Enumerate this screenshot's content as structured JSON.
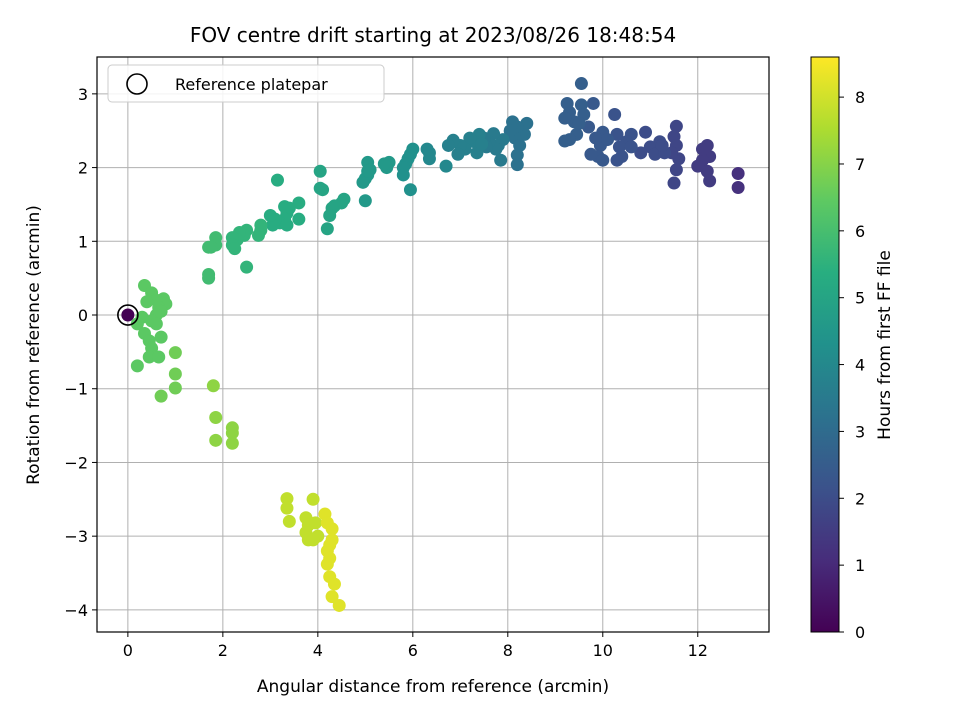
{
  "chart_data": {
    "type": "scatter",
    "title": "FOV centre drift starting at 2023/08/26 18:48:54",
    "xlabel": "Angular distance from reference (arcmin)",
    "ylabel": "Rotation from reference (arcmin)",
    "xlim": [
      -0.65,
      13.5
    ],
    "ylim": [
      -4.3,
      3.5
    ],
    "xticks": [
      0,
      2,
      4,
      6,
      8,
      10,
      12
    ],
    "yticks": [
      -4,
      -3,
      -2,
      -1,
      0,
      1,
      2,
      3
    ],
    "grid": true,
    "legend": {
      "location": "upper-left",
      "label": "Reference platepar"
    },
    "colorbar": {
      "label": "Hours from first FF file",
      "colormap": "viridis",
      "range": [
        0,
        8.6
      ],
      "ticks": [
        0,
        1,
        2,
        3,
        4,
        5,
        6,
        7,
        8
      ]
    },
    "reference_point": {
      "x": 0,
      "y": 0
    },
    "points": [
      {
        "x": 0.0,
        "y": 0.0,
        "t": 0.0
      },
      {
        "x": 12.85,
        "y": 1.92,
        "t": 1.2
      },
      {
        "x": 12.85,
        "y": 1.73,
        "t": 1.2
      },
      {
        "x": 12.2,
        "y": 2.3,
        "t": 1.5
      },
      {
        "x": 12.25,
        "y": 2.15,
        "t": 1.5
      },
      {
        "x": 12.1,
        "y": 2.1,
        "t": 1.5
      },
      {
        "x": 12.0,
        "y": 2.02,
        "t": 1.5
      },
      {
        "x": 12.2,
        "y": 1.95,
        "t": 1.5
      },
      {
        "x": 12.25,
        "y": 1.82,
        "t": 1.5
      },
      {
        "x": 12.1,
        "y": 2.25,
        "t": 1.5
      },
      {
        "x": 11.55,
        "y": 2.56,
        "t": 1.8
      },
      {
        "x": 11.5,
        "y": 2.42,
        "t": 1.8
      },
      {
        "x": 11.55,
        "y": 2.3,
        "t": 1.8
      },
      {
        "x": 11.6,
        "y": 2.12,
        "t": 1.8
      },
      {
        "x": 11.55,
        "y": 1.97,
        "t": 1.8
      },
      {
        "x": 11.5,
        "y": 1.79,
        "t": 1.8
      },
      {
        "x": 11.45,
        "y": 2.2,
        "t": 1.8
      },
      {
        "x": 11.2,
        "y": 2.35,
        "t": 2.0
      },
      {
        "x": 11.0,
        "y": 2.28,
        "t": 2.0
      },
      {
        "x": 11.1,
        "y": 2.18,
        "t": 2.0
      },
      {
        "x": 11.3,
        "y": 2.2,
        "t": 2.0
      },
      {
        "x": 10.9,
        "y": 2.48,
        "t": 2.0
      },
      {
        "x": 10.8,
        "y": 2.2,
        "t": 2.0
      },
      {
        "x": 11.25,
        "y": 2.3,
        "t": 2.0
      },
      {
        "x": 10.6,
        "y": 2.45,
        "t": 2.2
      },
      {
        "x": 10.5,
        "y": 2.35,
        "t": 2.2
      },
      {
        "x": 10.3,
        "y": 2.45,
        "t": 2.2
      },
      {
        "x": 10.35,
        "y": 2.28,
        "t": 2.2
      },
      {
        "x": 10.4,
        "y": 2.15,
        "t": 2.2
      },
      {
        "x": 10.25,
        "y": 2.72,
        "t": 2.2
      },
      {
        "x": 10.3,
        "y": 2.1,
        "t": 2.2
      },
      {
        "x": 10.6,
        "y": 2.28,
        "t": 2.2
      },
      {
        "x": 10.0,
        "y": 2.48,
        "t": 2.4
      },
      {
        "x": 9.95,
        "y": 2.3,
        "t": 2.4
      },
      {
        "x": 9.9,
        "y": 2.15,
        "t": 2.4
      },
      {
        "x": 10.0,
        "y": 2.1,
        "t": 2.4
      },
      {
        "x": 9.8,
        "y": 2.87,
        "t": 2.4
      },
      {
        "x": 9.7,
        "y": 2.55,
        "t": 2.4
      },
      {
        "x": 9.75,
        "y": 2.18,
        "t": 2.4
      },
      {
        "x": 9.85,
        "y": 2.4,
        "t": 2.4
      },
      {
        "x": 10.1,
        "y": 2.38,
        "t": 2.4
      },
      {
        "x": 9.55,
        "y": 3.14,
        "t": 2.6
      },
      {
        "x": 9.55,
        "y": 2.85,
        "t": 2.6
      },
      {
        "x": 9.6,
        "y": 2.72,
        "t": 2.6
      },
      {
        "x": 9.4,
        "y": 2.62,
        "t": 2.6
      },
      {
        "x": 9.3,
        "y": 2.75,
        "t": 2.6
      },
      {
        "x": 9.25,
        "y": 2.87,
        "t": 2.6
      },
      {
        "x": 9.2,
        "y": 2.67,
        "t": 2.6
      },
      {
        "x": 9.45,
        "y": 2.45,
        "t": 2.6
      },
      {
        "x": 9.3,
        "y": 2.38,
        "t": 2.6
      },
      {
        "x": 9.2,
        "y": 2.36,
        "t": 2.6
      },
      {
        "x": 9.5,
        "y": 2.6,
        "t": 2.6
      },
      {
        "x": 8.4,
        "y": 2.6,
        "t": 3.2
      },
      {
        "x": 8.35,
        "y": 2.45,
        "t": 3.2
      },
      {
        "x": 8.2,
        "y": 2.55,
        "t": 3.2
      },
      {
        "x": 8.1,
        "y": 2.62,
        "t": 3.2
      },
      {
        "x": 8.15,
        "y": 2.4,
        "t": 3.2
      },
      {
        "x": 8.25,
        "y": 2.3,
        "t": 3.2
      },
      {
        "x": 8.2,
        "y": 2.17,
        "t": 3.2
      },
      {
        "x": 8.2,
        "y": 2.04,
        "t": 3.2
      },
      {
        "x": 8.05,
        "y": 2.5,
        "t": 3.2
      },
      {
        "x": 7.9,
        "y": 2.38,
        "t": 3.5
      },
      {
        "x": 7.8,
        "y": 2.3,
        "t": 3.5
      },
      {
        "x": 7.7,
        "y": 2.46,
        "t": 3.5
      },
      {
        "x": 7.75,
        "y": 2.25,
        "t": 3.5
      },
      {
        "x": 7.6,
        "y": 2.35,
        "t": 3.5
      },
      {
        "x": 7.85,
        "y": 2.1,
        "t": 3.5
      },
      {
        "x": 7.5,
        "y": 2.4,
        "t": 3.5
      },
      {
        "x": 7.55,
        "y": 2.28,
        "t": 3.5
      },
      {
        "x": 7.4,
        "y": 2.45,
        "t": 3.7
      },
      {
        "x": 7.3,
        "y": 2.35,
        "t": 3.7
      },
      {
        "x": 7.35,
        "y": 2.2,
        "t": 3.7
      },
      {
        "x": 7.2,
        "y": 2.4,
        "t": 3.7
      },
      {
        "x": 7.1,
        "y": 2.25,
        "t": 3.7
      },
      {
        "x": 7.0,
        "y": 2.3,
        "t": 3.7
      },
      {
        "x": 6.95,
        "y": 2.18,
        "t": 3.7
      },
      {
        "x": 6.85,
        "y": 2.37,
        "t": 3.7
      },
      {
        "x": 6.75,
        "y": 2.3,
        "t": 3.7
      },
      {
        "x": 7.45,
        "y": 2.32,
        "t": 3.7
      },
      {
        "x": 6.7,
        "y": 2.02,
        "t": 4.0
      },
      {
        "x": 6.35,
        "y": 2.2,
        "t": 4.0
      },
      {
        "x": 6.3,
        "y": 2.25,
        "t": 4.0
      },
      {
        "x": 6.35,
        "y": 2.12,
        "t": 4.0
      },
      {
        "x": 6.0,
        "y": 2.25,
        "t": 4.3
      },
      {
        "x": 5.95,
        "y": 2.18,
        "t": 4.3
      },
      {
        "x": 5.9,
        "y": 2.12,
        "t": 4.3
      },
      {
        "x": 5.85,
        "y": 2.05,
        "t": 4.3
      },
      {
        "x": 5.8,
        "y": 2.0,
        "t": 4.3
      },
      {
        "x": 5.8,
        "y": 1.9,
        "t": 4.3
      },
      {
        "x": 5.95,
        "y": 1.7,
        "t": 4.3
      },
      {
        "x": 5.5,
        "y": 2.07,
        "t": 4.6
      },
      {
        "x": 5.45,
        "y": 2.0,
        "t": 4.6
      },
      {
        "x": 5.4,
        "y": 2.05,
        "t": 4.6
      },
      {
        "x": 5.05,
        "y": 2.07,
        "t": 4.6
      },
      {
        "x": 5.1,
        "y": 1.97,
        "t": 4.6
      },
      {
        "x": 5.05,
        "y": 1.9,
        "t": 4.6
      },
      {
        "x": 5.0,
        "y": 1.85,
        "t": 4.6
      },
      {
        "x": 4.95,
        "y": 1.8,
        "t": 4.6
      },
      {
        "x": 5.0,
        "y": 1.55,
        "t": 4.6
      },
      {
        "x": 5.05,
        "y": 1.95,
        "t": 4.6
      },
      {
        "x": 4.55,
        "y": 1.57,
        "t": 5.0
      },
      {
        "x": 4.5,
        "y": 1.52,
        "t": 5.0
      },
      {
        "x": 4.35,
        "y": 1.48,
        "t": 5.0
      },
      {
        "x": 4.3,
        "y": 1.45,
        "t": 5.0
      },
      {
        "x": 4.05,
        "y": 1.95,
        "t": 5.0
      },
      {
        "x": 4.05,
        "y": 1.72,
        "t": 5.0
      },
      {
        "x": 4.1,
        "y": 1.7,
        "t": 5.0
      },
      {
        "x": 4.25,
        "y": 1.35,
        "t": 5.0
      },
      {
        "x": 4.2,
        "y": 1.17,
        "t": 5.0
      },
      {
        "x": 3.6,
        "y": 1.52,
        "t": 5.3
      },
      {
        "x": 3.6,
        "y": 1.3,
        "t": 5.3
      },
      {
        "x": 3.4,
        "y": 1.45,
        "t": 5.3
      },
      {
        "x": 3.35,
        "y": 1.38,
        "t": 5.3
      },
      {
        "x": 3.3,
        "y": 1.47,
        "t": 5.3
      },
      {
        "x": 3.3,
        "y": 1.3,
        "t": 5.3
      },
      {
        "x": 3.2,
        "y": 1.25,
        "t": 5.3
      },
      {
        "x": 3.1,
        "y": 1.3,
        "t": 5.3
      },
      {
        "x": 3.05,
        "y": 1.22,
        "t": 5.3
      },
      {
        "x": 3.0,
        "y": 1.35,
        "t": 5.3
      },
      {
        "x": 3.15,
        "y": 1.83,
        "t": 5.3
      },
      {
        "x": 3.35,
        "y": 1.22,
        "t": 5.3
      },
      {
        "x": 2.8,
        "y": 1.15,
        "t": 5.6
      },
      {
        "x": 2.75,
        "y": 1.08,
        "t": 5.6
      },
      {
        "x": 2.8,
        "y": 1.22,
        "t": 5.6
      },
      {
        "x": 2.5,
        "y": 1.15,
        "t": 5.6
      },
      {
        "x": 2.45,
        "y": 1.08,
        "t": 5.6
      },
      {
        "x": 2.35,
        "y": 1.12,
        "t": 5.6
      },
      {
        "x": 2.3,
        "y": 1.02,
        "t": 5.6
      },
      {
        "x": 2.2,
        "y": 1.05,
        "t": 5.6
      },
      {
        "x": 2.2,
        "y": 0.95,
        "t": 5.6
      },
      {
        "x": 2.25,
        "y": 0.9,
        "t": 5.6
      },
      {
        "x": 2.5,
        "y": 0.65,
        "t": 5.6
      },
      {
        "x": 1.85,
        "y": 1.05,
        "t": 5.9
      },
      {
        "x": 1.85,
        "y": 0.95,
        "t": 5.9
      },
      {
        "x": 1.75,
        "y": 0.92,
        "t": 5.9
      },
      {
        "x": 1.7,
        "y": 0.92,
        "t": 5.9
      },
      {
        "x": 1.7,
        "y": 0.55,
        "t": 5.9
      },
      {
        "x": 1.7,
        "y": 0.5,
        "t": 5.9
      },
      {
        "x": 0.35,
        "y": 0.4,
        "t": 6.4
      },
      {
        "x": 0.5,
        "y": 0.3,
        "t": 6.4
      },
      {
        "x": 0.75,
        "y": 0.22,
        "t": 6.4
      },
      {
        "x": 0.8,
        "y": 0.15,
        "t": 6.4
      },
      {
        "x": 0.6,
        "y": 0.2,
        "t": 6.4
      },
      {
        "x": 0.4,
        "y": 0.18,
        "t": 6.4
      },
      {
        "x": 0.65,
        "y": 0.1,
        "t": 6.4
      },
      {
        "x": 0.7,
        "y": 0.05,
        "t": 6.4
      },
      {
        "x": 0.6,
        "y": 0.0,
        "t": 6.4
      },
      {
        "x": 0.5,
        "y": -0.08,
        "t": 6.4
      },
      {
        "x": 0.6,
        "y": -0.12,
        "t": 6.4
      },
      {
        "x": 0.3,
        "y": -0.03,
        "t": 6.4
      },
      {
        "x": 0.2,
        "y": -0.12,
        "t": 6.4
      },
      {
        "x": 0.35,
        "y": -0.25,
        "t": 6.4
      },
      {
        "x": 0.45,
        "y": -0.35,
        "t": 6.4
      },
      {
        "x": 0.7,
        "y": -0.3,
        "t": 6.4
      },
      {
        "x": 0.5,
        "y": -0.45,
        "t": 6.4
      },
      {
        "x": 0.45,
        "y": -0.57,
        "t": 6.4
      },
      {
        "x": 0.65,
        "y": -0.57,
        "t": 6.4
      },
      {
        "x": 0.2,
        "y": -0.69,
        "t": 6.4
      },
      {
        "x": 1.0,
        "y": -0.51,
        "t": 6.7
      },
      {
        "x": 1.0,
        "y": -0.8,
        "t": 6.7
      },
      {
        "x": 1.0,
        "y": -0.99,
        "t": 6.7
      },
      {
        "x": 0.7,
        "y": -1.1,
        "t": 6.7
      },
      {
        "x": 1.8,
        "y": -0.96,
        "t": 7.1
      },
      {
        "x": 1.85,
        "y": -1.39,
        "t": 7.1
      },
      {
        "x": 1.85,
        "y": -1.7,
        "t": 7.1
      },
      {
        "x": 2.2,
        "y": -1.53,
        "t": 7.1
      },
      {
        "x": 2.2,
        "y": -1.6,
        "t": 7.1
      },
      {
        "x": 2.2,
        "y": -1.74,
        "t": 7.1
      },
      {
        "x": 3.35,
        "y": -2.49,
        "t": 7.8
      },
      {
        "x": 3.35,
        "y": -2.62,
        "t": 7.8
      },
      {
        "x": 3.4,
        "y": -2.8,
        "t": 7.8
      },
      {
        "x": 3.9,
        "y": -2.5,
        "t": 7.8
      },
      {
        "x": 3.75,
        "y": -2.75,
        "t": 7.8
      },
      {
        "x": 3.8,
        "y": -2.85,
        "t": 7.8
      },
      {
        "x": 3.75,
        "y": -2.95,
        "t": 7.8
      },
      {
        "x": 3.8,
        "y": -3.05,
        "t": 7.8
      },
      {
        "x": 3.95,
        "y": -2.82,
        "t": 7.8
      },
      {
        "x": 4.0,
        "y": -3.0,
        "t": 7.8
      },
      {
        "x": 3.9,
        "y": -3.05,
        "t": 7.8
      },
      {
        "x": 4.15,
        "y": -2.7,
        "t": 8.2
      },
      {
        "x": 4.2,
        "y": -2.82,
        "t": 8.2
      },
      {
        "x": 4.3,
        "y": -2.9,
        "t": 8.2
      },
      {
        "x": 4.3,
        "y": -3.05,
        "t": 8.2
      },
      {
        "x": 4.25,
        "y": -3.12,
        "t": 8.2
      },
      {
        "x": 4.2,
        "y": -3.2,
        "t": 8.2
      },
      {
        "x": 4.25,
        "y": -3.3,
        "t": 8.2
      },
      {
        "x": 4.2,
        "y": -3.38,
        "t": 8.2
      },
      {
        "x": 4.25,
        "y": -3.55,
        "t": 8.2
      },
      {
        "x": 4.35,
        "y": -3.65,
        "t": 8.2
      },
      {
        "x": 4.3,
        "y": -3.82,
        "t": 8.2
      },
      {
        "x": 4.45,
        "y": -3.94,
        "t": 8.2
      }
    ]
  }
}
